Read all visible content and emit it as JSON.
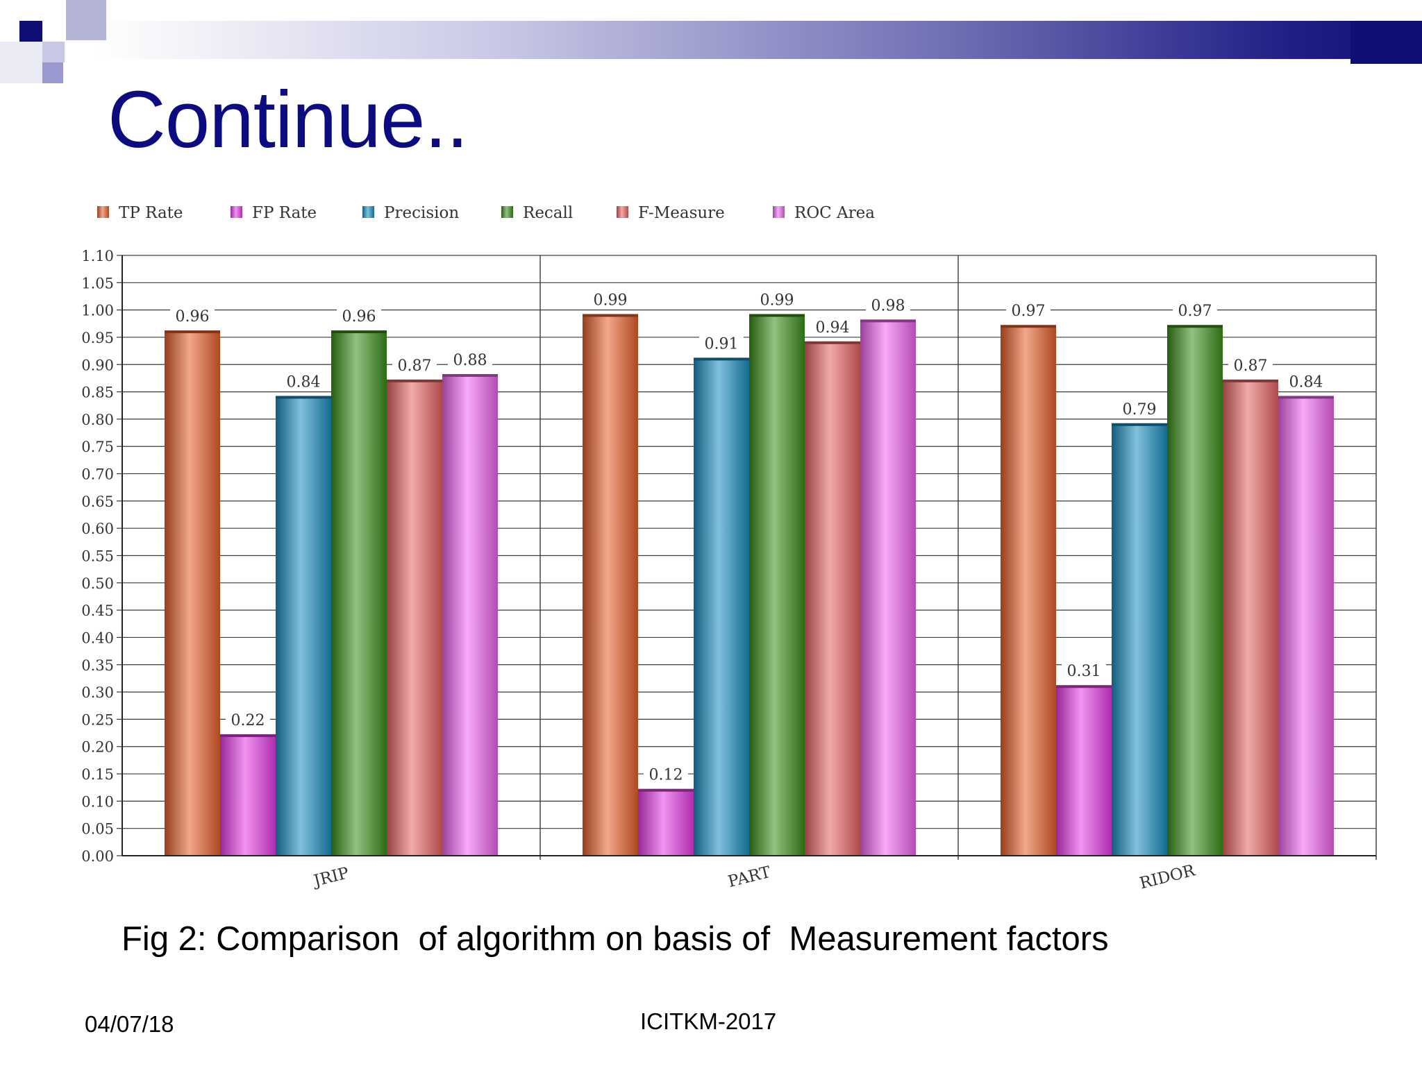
{
  "slide": {
    "title": "Continue..",
    "caption": "Fig 2: Comparison  of algorithm on basis of  Measurement factors",
    "footer_date": "04/07/18",
    "footer_event": "ICITKM-2017"
  },
  "chart_data": {
    "type": "bar",
    "categories": [
      "JRIP",
      "PART",
      "RIDOR"
    ],
    "series": [
      {
        "name": "TP Rate",
        "values": [
          0.96,
          0.99,
          0.97
        ],
        "color": "#e8602c"
      },
      {
        "name": "FP Rate",
        "values": [
          0.22,
          0.12,
          0.31
        ],
        "color": "#e83ce8"
      },
      {
        "name": "Precision",
        "values": [
          0.84,
          0.91,
          0.79
        ],
        "color": "#1a8fc0"
      },
      {
        "name": "Recall",
        "values": [
          0.96,
          0.99,
          0.97
        ],
        "color": "#3a8f1a"
      },
      {
        "name": "F-Measure",
        "values": [
          0.87,
          0.94,
          0.87
        ],
        "color": "#e86464"
      },
      {
        "name": "ROC Area",
        "values": [
          0.88,
          0.98,
          0.84
        ],
        "color": "#f064f0"
      }
    ],
    "data_labels": [
      [
        "0.96",
        "0.99",
        "0.97"
      ],
      [
        "0.22",
        "0.12",
        "0.31"
      ],
      [
        "0.84",
        "0.91",
        "0.79"
      ],
      [
        "0.96",
        "0.99",
        "0.97"
      ],
      [
        "0.87",
        "0.94",
        "0.87"
      ],
      [
        "0.88",
        "0.98",
        "0.84"
      ]
    ],
    "y_ticks": [
      "0.00",
      "0.05",
      "0.10",
      "0.15",
      "0.20",
      "0.25",
      "0.30",
      "0.35",
      "0.40",
      "0.45",
      "0.50",
      "0.55",
      "0.60",
      "0.65",
      "0.70",
      "0.75",
      "0.80",
      "0.85",
      "0.90",
      "0.95",
      "1.00",
      "1.05",
      "1.10"
    ],
    "ylim": [
      0,
      1.1
    ],
    "grid": true,
    "legend": "top-left",
    "title": "",
    "xlabel": "",
    "ylabel": ""
  }
}
